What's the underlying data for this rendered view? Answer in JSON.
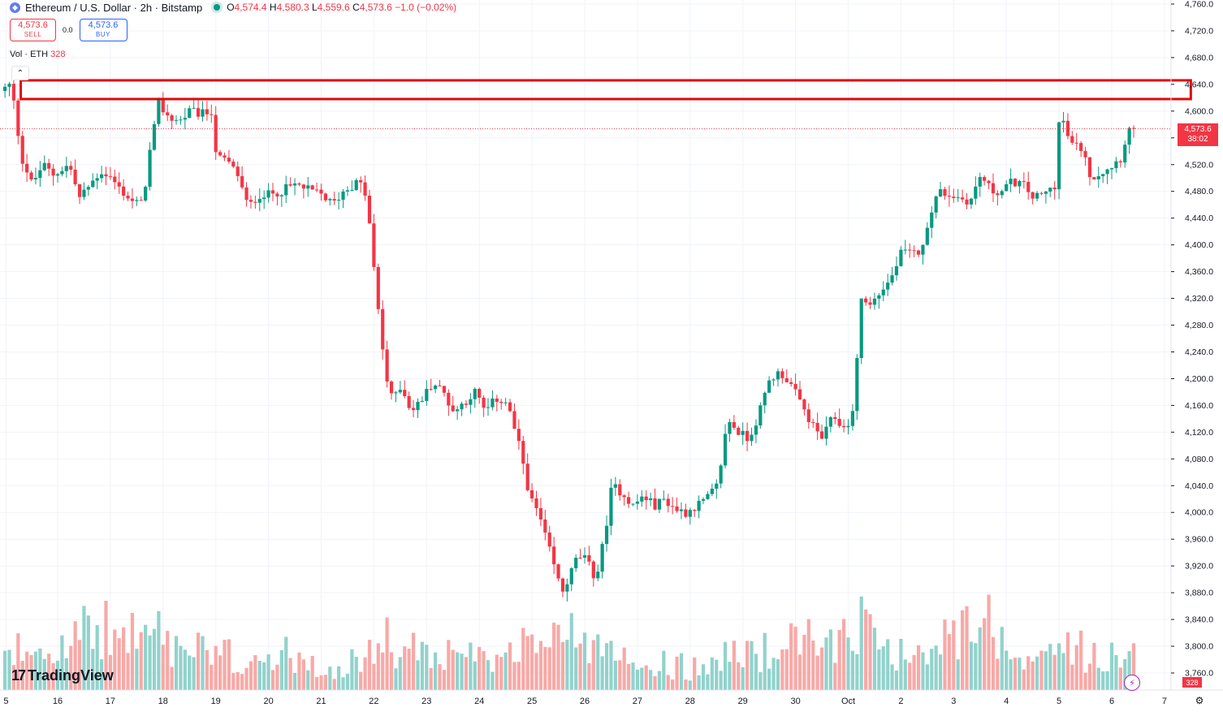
{
  "header": {
    "symbol_text": "Ethereum / U.S. Dollar · 2h · Bitstamp",
    "icon": "ethereum-icon",
    "open_label": "O",
    "open": "4,574.4",
    "high_label": "H",
    "high": "4,580.3",
    "low_label": "L",
    "low": "4,559.6",
    "close_label": "C",
    "close": "4,573.6",
    "change": "−1.0 (−0.02%)"
  },
  "trade": {
    "sell_price": "4,573.6",
    "sell_label": "SELL",
    "spread": "0.0",
    "buy_price": "4,573.6",
    "buy_label": "BUY"
  },
  "volume_legend": {
    "label": "Vol · ETH",
    "value": "328"
  },
  "price_tag": {
    "price": "4,573.6",
    "countdown": "38:02"
  },
  "volume_tag": "328",
  "logo": {
    "mark": "17",
    "text": "TradingView"
  },
  "colors": {
    "up": "#089981",
    "down": "#f23645",
    "up_vol": "#92d2cc",
    "down_vol": "#f7a9a7",
    "box": "#e0080b"
  },
  "chart_data": {
    "type": "candlestick",
    "y_ticks": [
      "4,760.0",
      "4,720.0",
      "4,680.0",
      "4,640.0",
      "4,600.0",
      "4,560.0",
      "4,520.0",
      "4,480.0",
      "4,440.0",
      "4,400.0",
      "4,360.0",
      "4,320.0",
      "4,280.0",
      "4,240.0",
      "4,200.0",
      "4,160.0",
      "4,120.0",
      "4,080.0",
      "4,040.0",
      "4,000.0",
      "3,960.0",
      "3,920.0",
      "3,880.0",
      "3,840.0",
      "3,800.0",
      "3,760.0"
    ],
    "y_tick_values": [
      4760,
      4720,
      4680,
      4640,
      4600,
      4560,
      4520,
      4480,
      4440,
      4400,
      4360,
      4320,
      4280,
      4240,
      4200,
      4160,
      4120,
      4080,
      4040,
      4000,
      3960,
      3920,
      3880,
      3840,
      3800,
      3760
    ],
    "ylim": [
      3740,
      4770
    ],
    "x_ticks": [
      "5",
      "16",
      "17",
      "18",
      "19",
      "20",
      "21",
      "22",
      "23",
      "24",
      "25",
      "26",
      "27",
      "28",
      "29",
      "30",
      "Oct",
      "2",
      "3",
      "4",
      "5",
      "6",
      "7"
    ],
    "x_tick_days": [
      -0.98,
      0,
      1,
      2,
      3,
      4,
      5,
      6,
      7,
      8,
      9,
      10,
      11,
      12,
      13,
      14,
      15,
      16,
      17,
      18,
      19,
      20,
      21
    ],
    "last_price": 4573.6,
    "resistance_zone": [
      4618,
      4646
    ],
    "day_anchors": [
      [
        -1.0,
        4630
      ],
      [
        -0.8,
        4640
      ],
      [
        -0.6,
        4530
      ],
      [
        -0.4,
        4490
      ],
      [
        -0.2,
        4520
      ],
      [
        0.0,
        4505
      ],
      [
        0.3,
        4520
      ],
      [
        0.5,
        4470
      ],
      [
        0.7,
        4490
      ],
      [
        0.9,
        4510
      ],
      [
        1.1,
        4500
      ],
      [
        1.3,
        4480
      ],
      [
        1.5,
        4465
      ],
      [
        1.7,
        4460
      ],
      [
        1.8,
        4525
      ],
      [
        2.0,
        4610
      ],
      [
        2.2,
        4590
      ],
      [
        2.4,
        4585
      ],
      [
        2.6,
        4600
      ],
      [
        2.8,
        4595
      ],
      [
        3.0,
        4600
      ],
      [
        3.1,
        4530
      ],
      [
        3.3,
        4525
      ],
      [
        3.5,
        4505
      ],
      [
        3.7,
        4455
      ],
      [
        3.9,
        4475
      ],
      [
        4.1,
        4475
      ],
      [
        4.3,
        4480
      ],
      [
        4.6,
        4490
      ],
      [
        4.9,
        4480
      ],
      [
        5.1,
        4475
      ],
      [
        5.3,
        4460
      ],
      [
        5.5,
        4480
      ],
      [
        5.8,
        4495
      ],
      [
        5.95,
        4470
      ],
      [
        6.1,
        4350
      ],
      [
        6.2,
        4280
      ],
      [
        6.3,
        4210
      ],
      [
        6.4,
        4170
      ],
      [
        6.6,
        4190
      ],
      [
        6.8,
        4150
      ],
      [
        7.0,
        4170
      ],
      [
        7.2,
        4195
      ],
      [
        7.4,
        4180
      ],
      [
        7.6,
        4150
      ],
      [
        7.8,
        4165
      ],
      [
        8.0,
        4180
      ],
      [
        8.2,
        4150
      ],
      [
        8.4,
        4170
      ],
      [
        8.6,
        4165
      ],
      [
        8.7,
        4140
      ],
      [
        8.9,
        4080
      ],
      [
        9.05,
        4020
      ],
      [
        9.2,
        4000
      ],
      [
        9.35,
        3960
      ],
      [
        9.5,
        3920
      ],
      [
        9.65,
        3880
      ],
      [
        9.8,
        3905
      ],
      [
        9.95,
        3935
      ],
      [
        10.1,
        3930
      ],
      [
        10.3,
        3900
      ],
      [
        10.45,
        3960
      ],
      [
        10.6,
        4040
      ],
      [
        10.8,
        4030
      ],
      [
        11.0,
        4010
      ],
      [
        11.2,
        4025
      ],
      [
        11.4,
        4010
      ],
      [
        11.6,
        4020
      ],
      [
        11.8,
        4005
      ],
      [
        12.0,
        4000
      ],
      [
        12.2,
        4010
      ],
      [
        12.4,
        4020
      ],
      [
        12.6,
        4040
      ],
      [
        12.8,
        4140
      ],
      [
        13.0,
        4120
      ],
      [
        13.2,
        4110
      ],
      [
        13.4,
        4150
      ],
      [
        13.6,
        4200
      ],
      [
        13.8,
        4210
      ],
      [
        14.0,
        4190
      ],
      [
        14.2,
        4160
      ],
      [
        14.4,
        4130
      ],
      [
        14.6,
        4110
      ],
      [
        14.8,
        4145
      ],
      [
        15.0,
        4125
      ],
      [
        15.2,
        4150
      ],
      [
        15.3,
        4320
      ],
      [
        15.5,
        4310
      ],
      [
        15.7,
        4330
      ],
      [
        15.9,
        4350
      ],
      [
        16.1,
        4390
      ],
      [
        16.3,
        4385
      ],
      [
        16.5,
        4395
      ],
      [
        16.6,
        4440
      ],
      [
        16.8,
        4480
      ],
      [
        17.0,
        4475
      ],
      [
        17.2,
        4470
      ],
      [
        17.4,
        4465
      ],
      [
        17.6,
        4505
      ],
      [
        17.8,
        4480
      ],
      [
        18.0,
        4480
      ],
      [
        18.2,
        4495
      ],
      [
        18.4,
        4490
      ],
      [
        18.6,
        4470
      ],
      [
        18.8,
        4475
      ],
      [
        19.0,
        4490
      ],
      [
        19.1,
        4600
      ],
      [
        19.3,
        4550
      ],
      [
        19.5,
        4545
      ],
      [
        19.7,
        4500
      ],
      [
        19.9,
        4510
      ],
      [
        20.1,
        4520
      ],
      [
        20.25,
        4530
      ],
      [
        20.4,
        4573
      ]
    ],
    "volume_profile": [
      [
        -1.0,
        0.2
      ],
      [
        -0.6,
        0.6
      ],
      [
        1.8,
        1.0
      ],
      [
        2.0,
        0.7
      ],
      [
        3.0,
        0.4
      ],
      [
        5.5,
        0.3
      ],
      [
        6.2,
        0.6
      ],
      [
        6.6,
        0.5
      ],
      [
        8.8,
        0.4
      ],
      [
        9.3,
        1.0
      ],
      [
        9.7,
        0.8
      ],
      [
        10.5,
        0.6
      ],
      [
        11.5,
        0.25
      ],
      [
        13.0,
        0.45
      ],
      [
        14.0,
        0.6
      ],
      [
        15.3,
        1.0
      ],
      [
        16.0,
        0.5
      ],
      [
        16.8,
        0.7
      ],
      [
        17.6,
        1.0
      ],
      [
        18.5,
        0.4
      ],
      [
        19.1,
        0.7
      ],
      [
        19.8,
        0.3
      ],
      [
        20.4,
        0.6
      ]
    ]
  }
}
